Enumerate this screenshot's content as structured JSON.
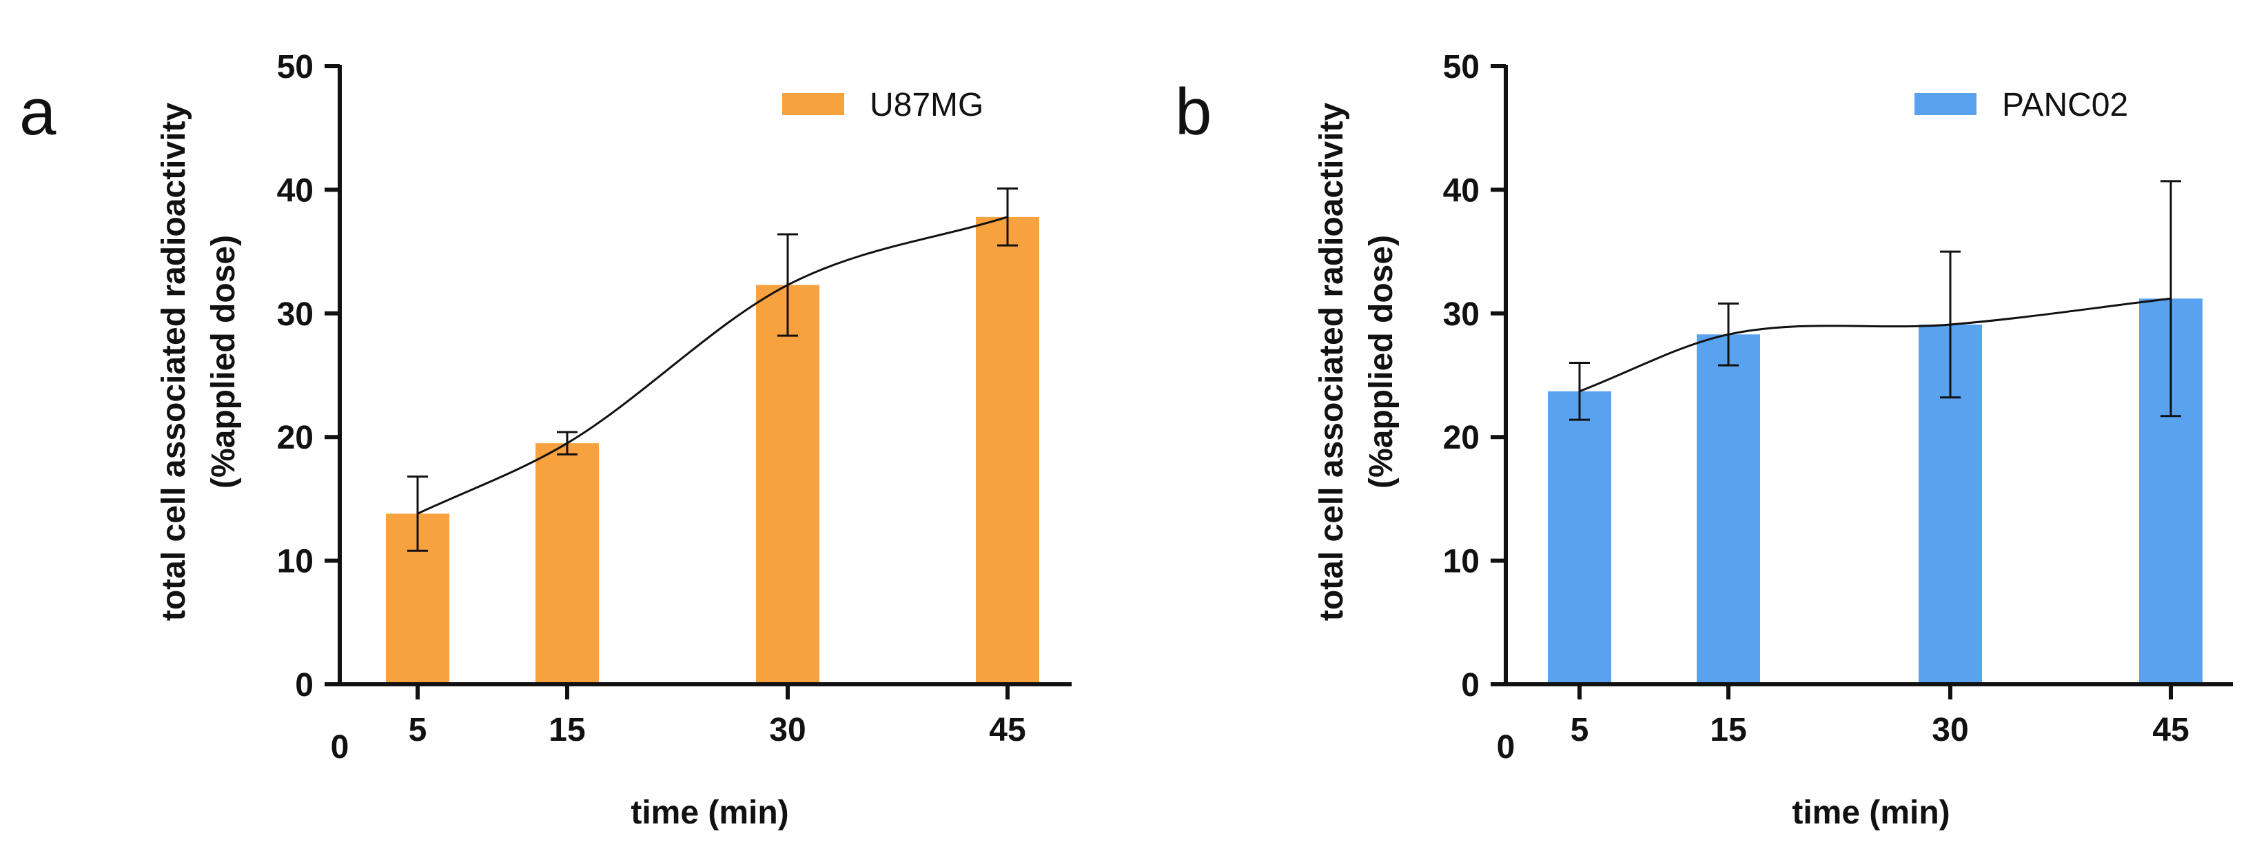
{
  "chart_data": [
    {
      "type": "bar",
      "panel": "a",
      "legend": "U87MG",
      "legend_position": "top-right",
      "color": "#F8A13F",
      "x_values": [
        5,
        15,
        30,
        45
      ],
      "categories": [
        "5",
        "15",
        "30",
        "45"
      ],
      "x_origin_label": "0",
      "values": [
        13.8,
        19.5,
        32.3,
        37.8
      ],
      "error": [
        3.0,
        0.9,
        4.1,
        2.3
      ],
      "fit_line": true,
      "xlabel": "time (min)",
      "ylabel_lines": [
        "total cell associated radioactivity",
        "(%applied dose)"
      ],
      "ylim": [
        0,
        50
      ],
      "yticks": [
        "0",
        "10",
        "20",
        "30",
        "40",
        "50"
      ]
    },
    {
      "type": "bar",
      "panel": "b",
      "legend": "PANC02",
      "legend_position": "top-right",
      "color": "#58A2F0",
      "x_values": [
        5,
        15,
        30,
        45
      ],
      "categories": [
        "5",
        "15",
        "30",
        "45"
      ],
      "x_origin_label": "0",
      "values": [
        23.7,
        28.3,
        29.1,
        31.2
      ],
      "error": [
        2.3,
        2.5,
        5.9,
        9.5
      ],
      "fit_line": true,
      "xlabel": "time (min)",
      "ylabel_lines": [
        "total cell associated radioactivity",
        "(%applied dose)"
      ],
      "ylim": [
        0,
        50
      ],
      "yticks": [
        "0",
        "10",
        "20",
        "30",
        "40",
        "50"
      ]
    }
  ]
}
